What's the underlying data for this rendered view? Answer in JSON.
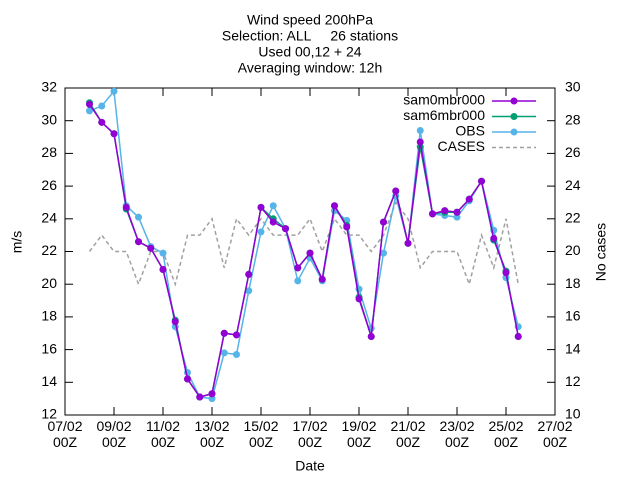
{
  "chart_data": {
    "type": "line",
    "title": [
      "Wind speed 200hPa",
      "Selection: ALL     26 stations",
      "Used 00,12 + 24",
      "Averaging window: 12h"
    ],
    "xlabel": "Date",
    "ylabel": "m/s",
    "y2label": "No cases",
    "x": [
      8,
      8.5,
      9,
      9.5,
      10,
      10.5,
      11,
      11.5,
      12,
      12.5,
      13,
      13.5,
      14,
      14.5,
      15,
      15.5,
      16,
      16.5,
      17,
      17.5,
      18,
      18.5,
      19,
      19.5,
      20,
      20.5,
      21,
      21.5,
      22,
      22.5,
      23,
      23.5,
      24,
      24.5,
      25,
      25.5
    ],
    "series": [
      {
        "name": "sam0mbr000",
        "color": "#9400d3",
        "marker": true,
        "dashed": false,
        "values": [
          31.0,
          29.9,
          29.2,
          24.7,
          22.6,
          22.2,
          20.9,
          17.7,
          14.2,
          13.1,
          13.3,
          17.0,
          16.9,
          20.6,
          24.7,
          23.8,
          23.4,
          21.0,
          21.9,
          20.3,
          24.8,
          23.5,
          19.1,
          16.8,
          23.8,
          25.7,
          22.5,
          28.7,
          24.3,
          24.5,
          24.4,
          25.2,
          26.3,
          22.8,
          20.7,
          16.8
        ]
      },
      {
        "name": "sam6mbr000",
        "color": "#009e73",
        "marker": true,
        "dashed": false,
        "values": [
          31.1,
          29.9,
          29.2,
          24.6,
          22.6,
          22.2,
          20.9,
          17.8,
          14.2,
          13.1,
          13.3,
          17.0,
          16.9,
          20.6,
          24.7,
          24.0,
          23.4,
          21.0,
          21.9,
          20.3,
          24.8,
          23.6,
          19.2,
          16.8,
          23.8,
          25.7,
          22.5,
          28.4,
          24.3,
          24.4,
          24.4,
          25.2,
          26.3,
          22.7,
          20.8,
          16.8
        ]
      },
      {
        "name": "OBS",
        "color": "#56b4e9",
        "marker": true,
        "dashed": false,
        "values": [
          30.6,
          30.9,
          31.8,
          24.8,
          24.1,
          22.3,
          21.9,
          17.4,
          14.6,
          13.1,
          13.0,
          15.8,
          15.7,
          19.6,
          23.2,
          24.8,
          23.4,
          20.2,
          21.6,
          20.2,
          24.5,
          23.9,
          19.7,
          17.3,
          21.9,
          25.4,
          22.5,
          29.4,
          24.3,
          24.2,
          24.1,
          25.1,
          26.3,
          23.3,
          20.4,
          17.4
        ]
      },
      {
        "name": "CASES",
        "color": "#a0a0a0",
        "marker": false,
        "dashed": true,
        "axis": "y2",
        "values": [
          20,
          21,
          20,
          20,
          18,
          20,
          20,
          18,
          21,
          21,
          22,
          19,
          22,
          21,
          22,
          21,
          21,
          21,
          22,
          20,
          22,
          21,
          21,
          20,
          21,
          23,
          22,
          19,
          20,
          20,
          20,
          18,
          21,
          19,
          22,
          18
        ]
      }
    ],
    "xlim": [
      7,
      27
    ],
    "xticks": [
      {
        "value": 7,
        "label": "07/02 00Z"
      },
      {
        "value": 9,
        "label": "09/02 00Z"
      },
      {
        "value": 11,
        "label": "11/02 00Z"
      },
      {
        "value": 13,
        "label": "13/02 00Z"
      },
      {
        "value": 15,
        "label": "15/02 00Z"
      },
      {
        "value": 17,
        "label": "17/02 00Z"
      },
      {
        "value": 19,
        "label": "19/02 00Z"
      },
      {
        "value": 21,
        "label": "21/02 00Z"
      },
      {
        "value": 23,
        "label": "23/02 00Z"
      },
      {
        "value": 25,
        "label": "25/02 00Z"
      },
      {
        "value": 27,
        "label": "27/02 00Z"
      }
    ],
    "ylim": [
      12,
      32
    ],
    "yticks": [
      12,
      14,
      16,
      18,
      20,
      22,
      24,
      26,
      28,
      30,
      32
    ],
    "y2lim": [
      10,
      30
    ],
    "y2ticks": [
      10,
      12,
      14,
      16,
      18,
      20,
      22,
      24,
      26,
      28,
      30
    ],
    "legend": "upper right",
    "grid": false
  }
}
